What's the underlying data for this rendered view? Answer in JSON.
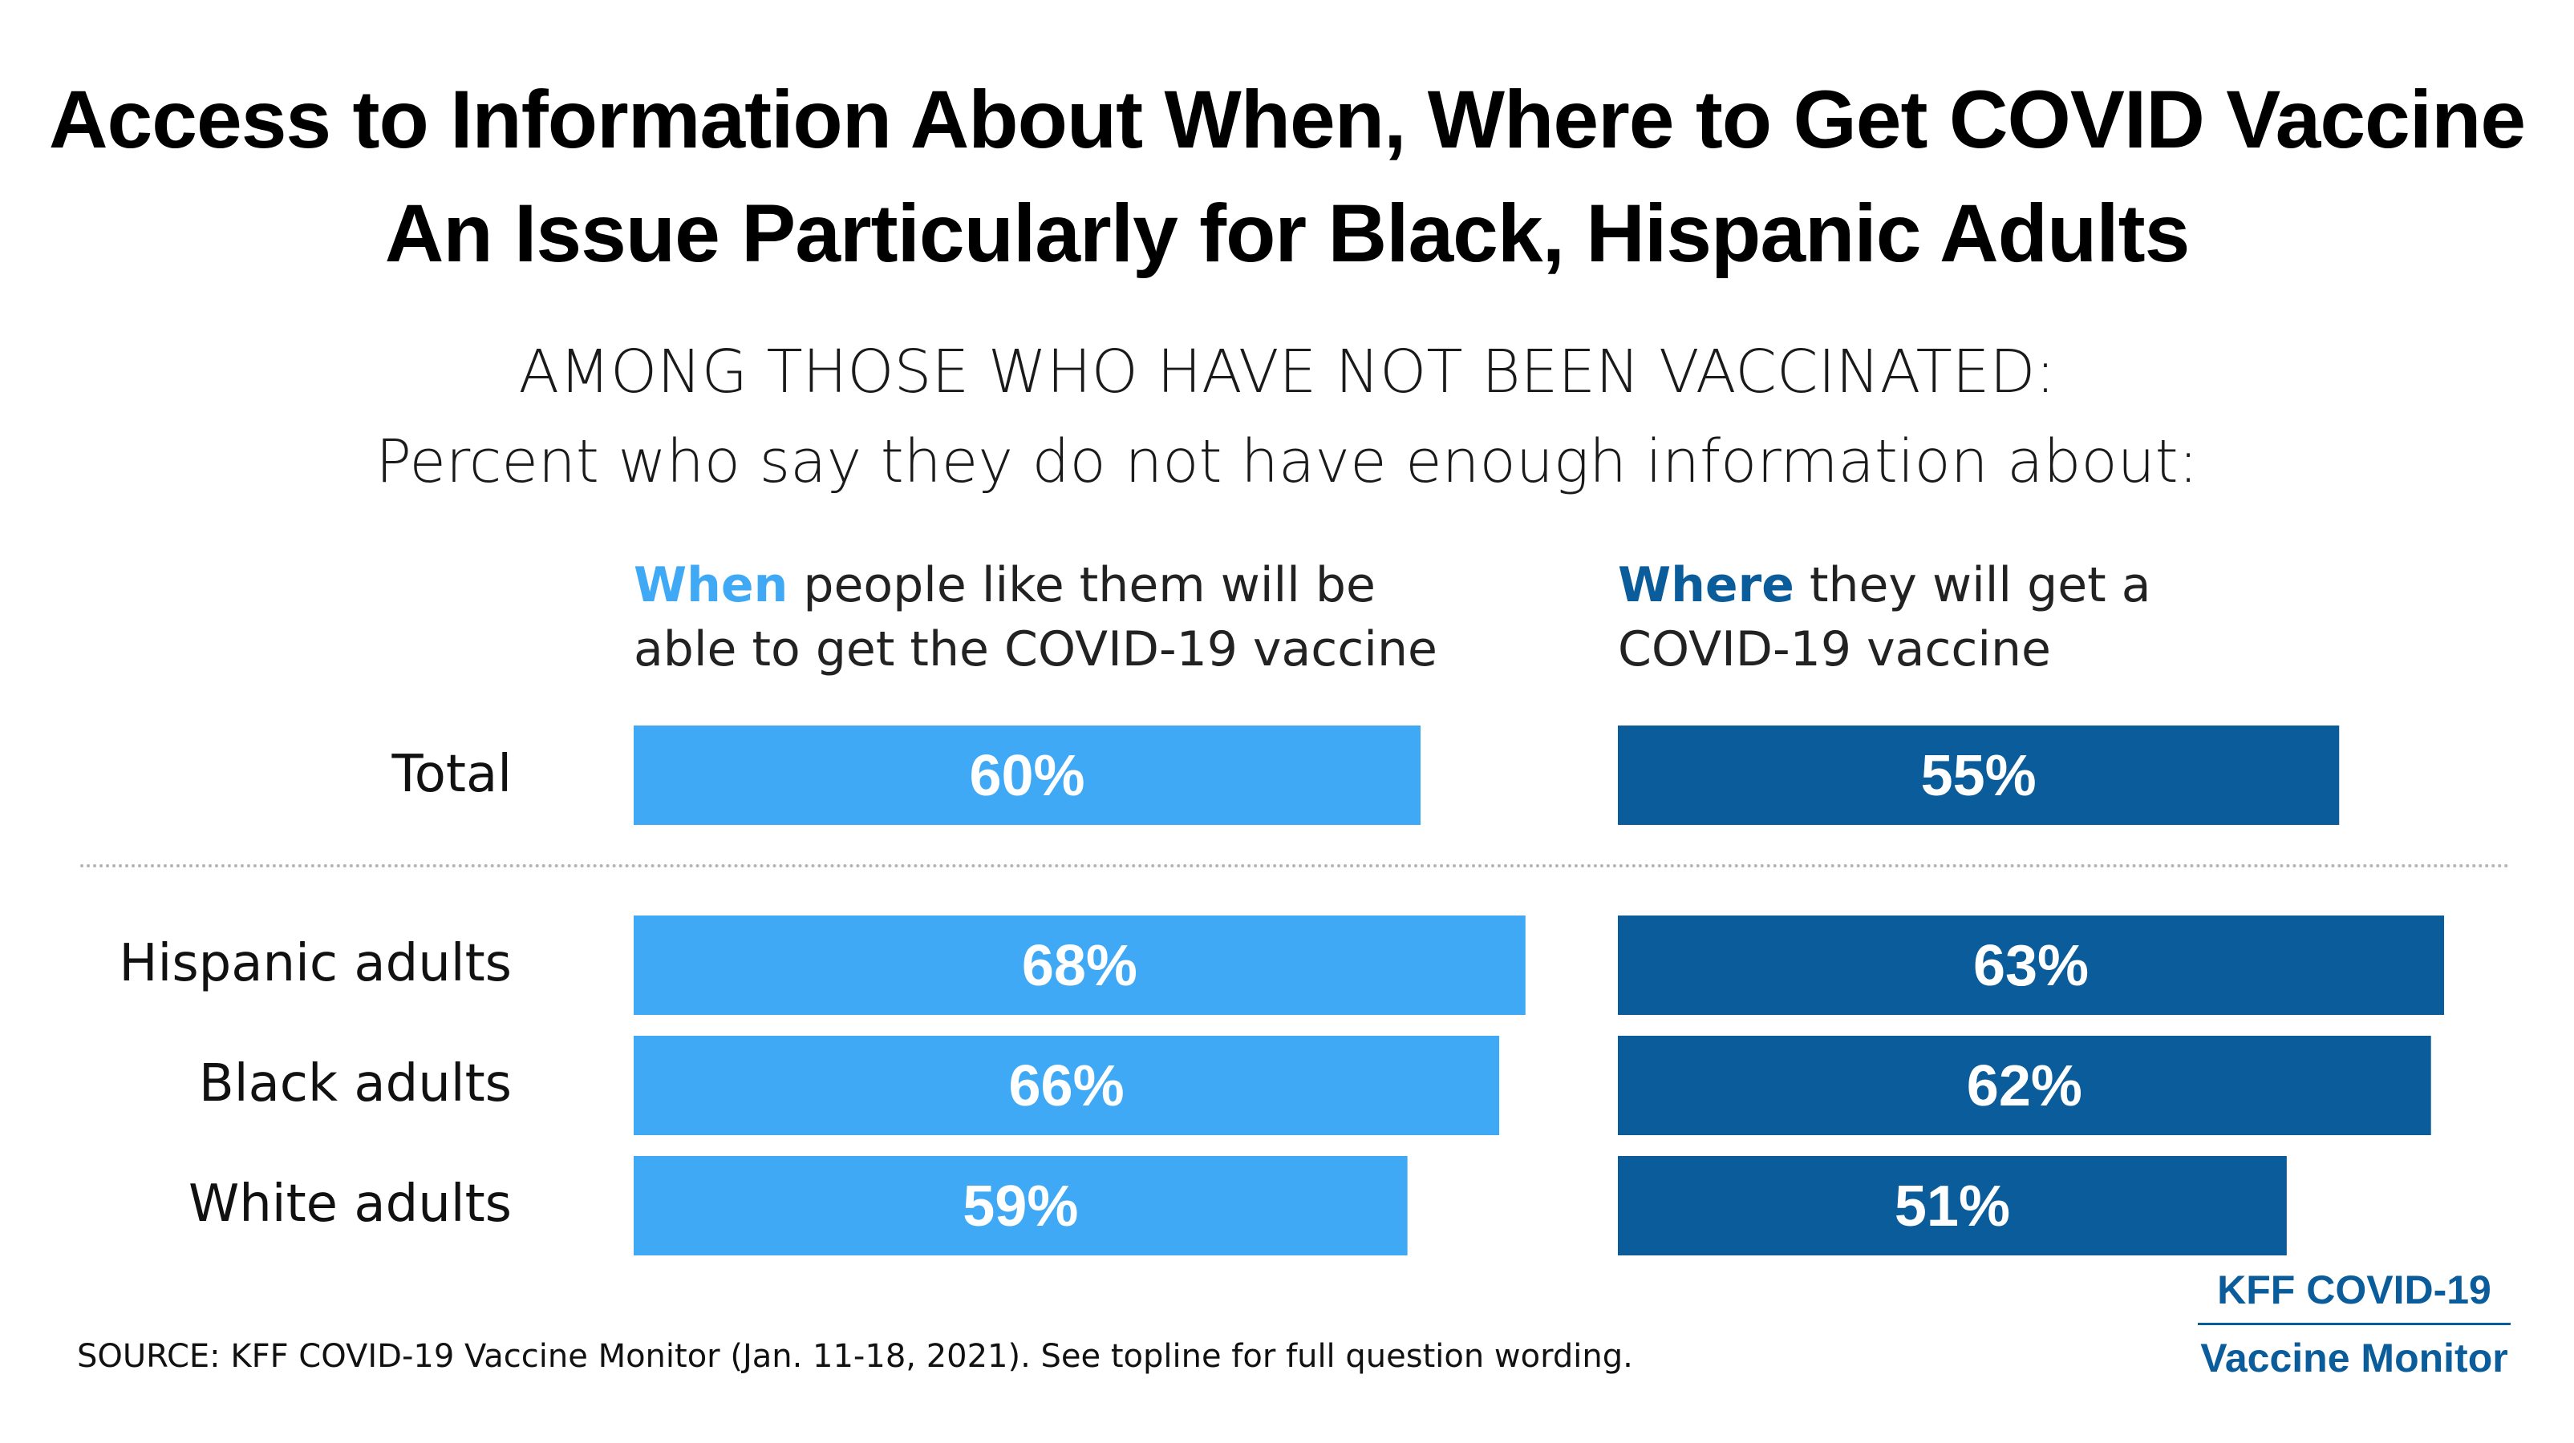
{
  "chart_data": {
    "type": "bar",
    "title": "Access to Information About When, Where to Get COVID Vaccine An Issue Particularly for Black, Hispanic Adults",
    "subtitle_line1": "AMONG THOSE WHO HAVE NOT BEEN VACCINATED:",
    "subtitle_line2": "Percent who say they do not have enough information about:",
    "orientation": "horizontal",
    "categories": [
      "Total",
      "Hispanic adults",
      "Black adults",
      "White adults"
    ],
    "series": [
      {
        "keyword": "When",
        "rest_line1": " people like them will be",
        "rest_line2": "able to get the COVID-19 vaccine",
        "color": "#3fa9f5",
        "values": [
          60,
          68,
          66,
          59
        ]
      },
      {
        "keyword": "Where",
        "rest_line1": " they will get a",
        "rest_line2": "COVID-19 vaccine",
        "color": "#0a5c9a",
        "values": [
          55,
          63,
          62,
          51
        ]
      }
    ],
    "value_suffix": "%",
    "grid": false
  },
  "source": "SOURCE: KFF COVID-19 Vaccine Monitor (Jan. 11-18, 2021). See topline for full question wording.",
  "brand": {
    "line1": "KFF COVID-19",
    "line2": "Vaccine Monitor"
  }
}
